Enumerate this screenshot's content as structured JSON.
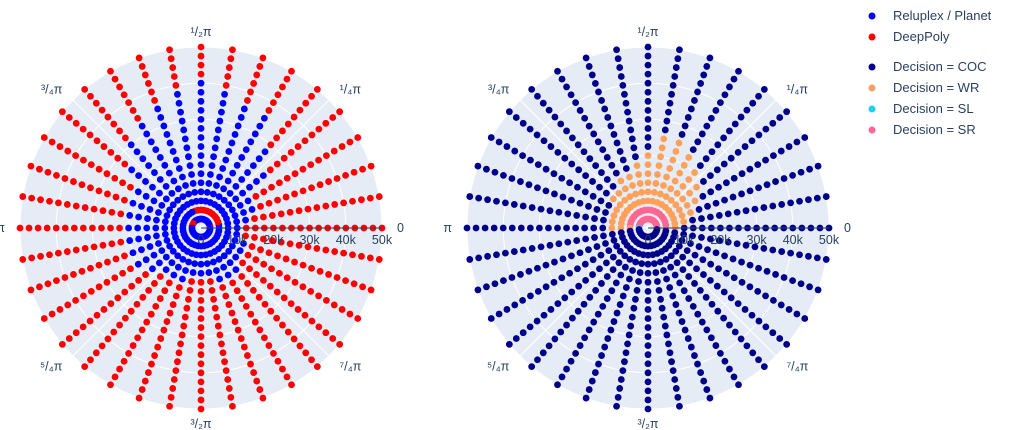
{
  "chart_data": [
    {
      "type": "scatter",
      "subtype": "polar",
      "angular_ticks": [
        {
          "label": "0",
          "angle_pi": 0
        },
        {
          "label": "¹/₄π",
          "angle_pi": 0.25
        },
        {
          "label": "¹/₂π",
          "angle_pi": 0.5
        },
        {
          "label": "³/₄π",
          "angle_pi": 0.75
        },
        {
          "label": "π",
          "angle_pi": 1.0
        },
        {
          "label": "⁵/₄π",
          "angle_pi": 1.25
        },
        {
          "label": "³/₂π",
          "angle_pi": 1.5
        },
        {
          "label": "⁷/₄π",
          "angle_pi": 1.75
        }
      ],
      "radial_ticks": [
        "0",
        "10k",
        "20k",
        "30k",
        "40k",
        "50k"
      ],
      "radial_values": [
        0,
        10000,
        20000,
        30000,
        40000,
        50000
      ],
      "radial_range": [
        0,
        50000
      ],
      "rays": 36,
      "points_per_ray": 20,
      "series": [
        {
          "name": "Reluplex / Planet",
          "color": "#0000ff"
        },
        {
          "name": "DeepPoly",
          "color": "#ff0000"
        }
      ],
      "blue_region_max_radius_by_angle_deg": [
        {
          "angle": 0,
          "r": 12000
        },
        {
          "angle": 30,
          "r": 17000
        },
        {
          "angle": 60,
          "r": 36000
        },
        {
          "angle": 90,
          "r": 40000
        },
        {
          "angle": 120,
          "r": 34000
        },
        {
          "angle": 150,
          "r": 22000
        },
        {
          "angle": 180,
          "r": 20000
        },
        {
          "angle": 210,
          "r": 20000
        },
        {
          "angle": 240,
          "r": 16000
        },
        {
          "angle": 270,
          "r": 14000
        },
        {
          "angle": 300,
          "r": 16000
        },
        {
          "angle": 330,
          "r": 13000
        },
        {
          "angle": 360,
          "r": 12000
        }
      ],
      "red_inner_arc": {
        "from_angle": 20,
        "to_angle": 110,
        "r": 5000
      }
    },
    {
      "type": "scatter",
      "subtype": "polar",
      "angular_ticks": [
        {
          "label": "0",
          "angle_pi": 0
        },
        {
          "label": "¹/₄π",
          "angle_pi": 0.25
        },
        {
          "label": "¹/₂π",
          "angle_pi": 0.5
        },
        {
          "label": "³/₄π",
          "angle_pi": 0.75
        },
        {
          "label": "π",
          "angle_pi": 1.0
        },
        {
          "label": "⁵/₄π",
          "angle_pi": 1.25
        },
        {
          "label": "³/₂π",
          "angle_pi": 1.5
        },
        {
          "label": "⁷/₄π",
          "angle_pi": 1.75
        }
      ],
      "radial_ticks": [
        "0",
        "10k",
        "20k",
        "30k",
        "40k",
        "50k"
      ],
      "radial_values": [
        0,
        10000,
        20000,
        30000,
        40000,
        50000
      ],
      "radial_range": [
        0,
        50000
      ],
      "rays": 36,
      "points_per_ray": 20,
      "series": [
        {
          "name": "Decision = COC",
          "color": "#00008b"
        },
        {
          "name": "Decision = WR",
          "color": "#ffa15a"
        },
        {
          "name": "Decision = SL",
          "color": "#19d3f3"
        },
        {
          "name": "Decision = SR",
          "color": "#ff6692"
        }
      ],
      "wr_region": {
        "angle_from": 0,
        "angle_to": 180,
        "r_max_by_angle": [
          {
            "angle": 0,
            "r": 9000
          },
          {
            "angle": 30,
            "r": 15000
          },
          {
            "angle": 60,
            "r": 24000
          },
          {
            "angle": 75,
            "r": 28000
          },
          {
            "angle": 90,
            "r": 20000
          },
          {
            "angle": 120,
            "r": 15000
          },
          {
            "angle": 150,
            "r": 12000
          },
          {
            "angle": 180,
            "r": 10000
          }
        ]
      },
      "sr_region": {
        "angle_from": 10,
        "angle_to": 170,
        "r_max": 6000
      }
    }
  ],
  "legend": [
    {
      "label": "Reluplex / Planet",
      "color": "#0000ff"
    },
    {
      "label": "DeepPoly",
      "color": "#ff0000"
    },
    {
      "label": "Decision = COC",
      "color": "#00008b"
    },
    {
      "label": "Decision = WR",
      "color": "#ffa15a"
    },
    {
      "label": "Decision = SL",
      "color": "#19d3f3"
    },
    {
      "label": "Decision = SR",
      "color": "#ff6692"
    }
  ],
  "colors": {
    "background": "#ffffff",
    "polar_bg": "#e5ecf6",
    "grid": "#ffffff",
    "text": "#2a3f5f"
  }
}
